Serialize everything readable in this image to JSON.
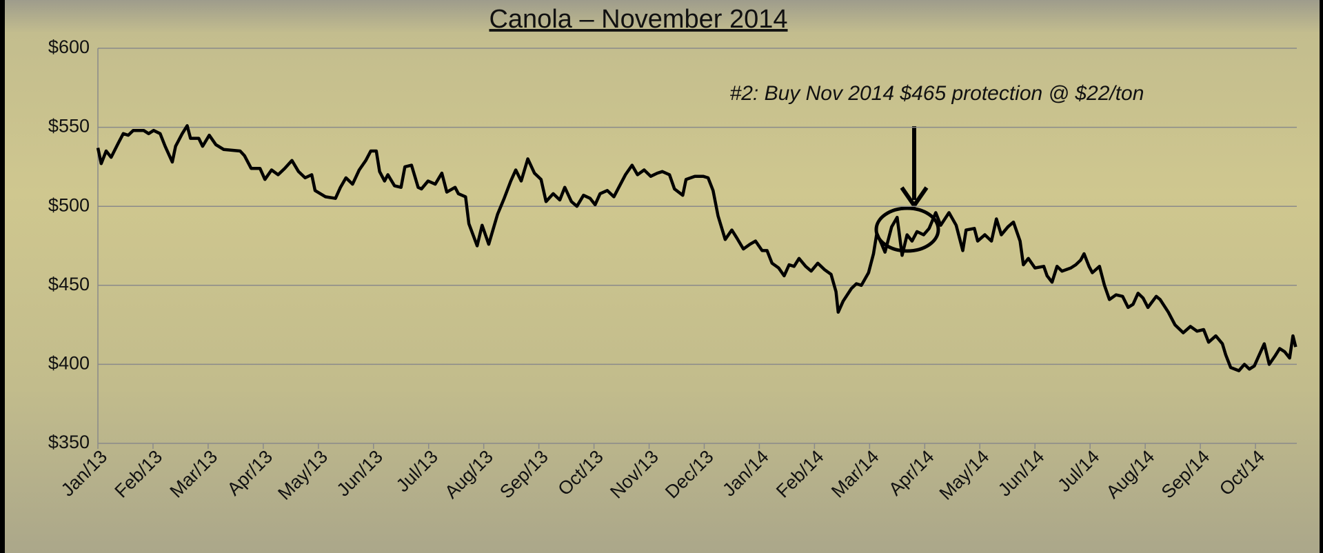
{
  "chart_data": {
    "type": "line",
    "title": "Canola – November 2014",
    "annotation": "#2: Buy Nov 2014 $465 protection @ $22/ton",
    "color": "#000000",
    "grid": true,
    "xlim": [
      0,
      21.75
    ],
    "ylim": [
      350,
      600
    ],
    "yticks": [
      {
        "value": 350,
        "label": "$350"
      },
      {
        "value": 400,
        "label": "$400"
      },
      {
        "value": 450,
        "label": "$450"
      },
      {
        "value": 500,
        "label": "$500"
      },
      {
        "value": 550,
        "label": "$550"
      },
      {
        "value": 600,
        "label": "$600"
      }
    ],
    "xticks": [
      {
        "value": 0,
        "label": "Jan/13"
      },
      {
        "value": 1,
        "label": "Feb/13"
      },
      {
        "value": 2,
        "label": "Mar/13"
      },
      {
        "value": 3,
        "label": "Apr/13"
      },
      {
        "value": 4,
        "label": "May/13"
      },
      {
        "value": 5,
        "label": "Jun/13"
      },
      {
        "value": 6,
        "label": "Jul/13"
      },
      {
        "value": 7,
        "label": "Aug/13"
      },
      {
        "value": 8,
        "label": "Sep/13"
      },
      {
        "value": 9,
        "label": "Oct/13"
      },
      {
        "value": 10,
        "label": "Nov/13"
      },
      {
        "value": 11,
        "label": "Dec/13"
      },
      {
        "value": 12,
        "label": "Jan/14"
      },
      {
        "value": 13,
        "label": "Feb/14"
      },
      {
        "value": 14,
        "label": "Mar/14"
      },
      {
        "value": 15,
        "label": "Apr/14"
      },
      {
        "value": 16,
        "label": "May/14"
      },
      {
        "value": 17,
        "label": "Jun/14"
      },
      {
        "value": 18,
        "label": "Jul/14"
      },
      {
        "value": 19,
        "label": "Aug/14"
      },
      {
        "value": 20,
        "label": "Sep/14"
      },
      {
        "value": 21,
        "label": "Oct/14"
      }
    ],
    "x": [
      0,
      0.06,
      0.15,
      0.24,
      0.37,
      0.46,
      0.55,
      0.64,
      0.83,
      0.92,
      1.01,
      1.13,
      1.22,
      1.35,
      1.41,
      1.53,
      1.62,
      1.68,
      1.83,
      1.9,
      2.02,
      2.14,
      2.28,
      2.58,
      2.66,
      2.78,
      2.94,
      3.03,
      3.15,
      3.27,
      3.39,
      3.52,
      3.64,
      3.76,
      3.88,
      3.94,
      4.13,
      4.31,
      4.4,
      4.5,
      4.62,
      4.74,
      4.86,
      4.95,
      5.05,
      5.11,
      5.2,
      5.26,
      5.38,
      5.5,
      5.57,
      5.69,
      5.81,
      5.87,
      5.99,
      6.12,
      6.24,
      6.33,
      6.48,
      6.54,
      6.67,
      6.73,
      6.88,
      6.97,
      7.09,
      7.25,
      7.37,
      7.49,
      7.58,
      7.68,
      7.8,
      7.92,
      8.04,
      8.13,
      8.26,
      8.38,
      8.47,
      8.59,
      8.69,
      8.81,
      8.93,
      9.02,
      9.11,
      9.24,
      9.36,
      9.45,
      9.57,
      9.69,
      9.79,
      9.91,
      10.03,
      10.15,
      10.24,
      10.37,
      10.46,
      10.61,
      10.67,
      10.83,
      10.98,
      11.07,
      11.16,
      11.25,
      11.38,
      11.5,
      11.59,
      11.71,
      11.83,
      11.93,
      12.05,
      12.14,
      12.23,
      12.35,
      12.45,
      12.54,
      12.63,
      12.72,
      12.84,
      12.94,
      13.06,
      13.18,
      13.3,
      13.39,
      13.43,
      13.52,
      13.67,
      13.76,
      13.85,
      13.98,
      14.07,
      14.13,
      14.22,
      14.28,
      14.4,
      14.5,
      14.59,
      14.68,
      14.77,
      14.86,
      14.98,
      15.08,
      15.2,
      15.29,
      15.44,
      15.57,
      15.69,
      15.75,
      15.9,
      15.96,
      16.09,
      16.21,
      16.3,
      16.39,
      16.51,
      16.61,
      16.73,
      16.79,
      16.88,
      17.0,
      17.16,
      17.22,
      17.31,
      17.4,
      17.49,
      17.65,
      17.74,
      17.83,
      17.89,
      17.98,
      18.04,
      18.17,
      18.26,
      18.35,
      18.47,
      18.59,
      18.69,
      18.78,
      18.87,
      18.96,
      19.05,
      19.2,
      19.27,
      19.42,
      19.54,
      19.69,
      19.82,
      19.94,
      20.06,
      20.15,
      20.28,
      20.4,
      20.46,
      20.55,
      20.7,
      20.8,
      20.89,
      20.98,
      21.07,
      21.16,
      21.25,
      21.35,
      21.44,
      21.53,
      21.62,
      21.68,
      21.73
    ],
    "values": [
      537,
      527,
      535,
      531,
      540,
      546,
      545,
      548,
      548,
      546,
      548,
      546,
      538,
      528,
      538,
      546,
      551,
      543,
      543,
      538,
      545,
      539,
      536,
      535,
      532,
      524,
      524,
      517,
      523,
      520,
      524,
      529,
      522,
      518,
      520,
      510,
      506,
      505,
      512,
      518,
      514,
      523,
      529,
      535,
      535,
      522,
      516,
      520,
      513,
      512,
      525,
      526,
      512,
      511,
      516,
      514,
      521,
      509,
      512,
      508,
      506,
      489,
      475,
      488,
      476,
      495,
      505,
      516,
      523,
      516,
      530,
      521,
      517,
      503,
      508,
      504,
      512,
      503,
      500,
      507,
      505,
      501,
      508,
      510,
      506,
      512,
      520,
      526,
      520,
      523,
      519,
      521,
      522,
      520,
      511,
      507,
      517,
      519,
      519,
      518,
      510,
      494,
      479,
      485,
      480,
      473,
      476,
      478,
      472,
      472,
      464,
      461,
      456,
      463,
      462,
      467,
      462,
      459,
      464,
      460,
      457,
      446,
      433,
      440,
      448,
      451,
      450,
      458,
      470,
      483,
      476,
      471,
      487,
      493,
      469,
      482,
      478,
      484,
      482,
      486,
      496,
      488,
      496,
      488,
      472,
      485,
      486,
      478,
      482,
      478,
      492,
      482,
      487,
      490,
      478,
      463,
      467,
      461,
      462,
      456,
      452,
      462,
      459,
      461,
      463,
      466,
      470,
      462,
      458,
      462,
      450,
      441,
      444,
      443,
      436,
      438,
      445,
      442,
      436,
      443,
      441,
      433,
      425,
      420,
      424,
      421,
      422,
      414,
      418,
      413,
      406,
      398,
      396,
      400,
      397,
      399,
      406,
      413,
      400,
      405,
      410,
      408,
      404,
      418,
      411
    ]
  }
}
